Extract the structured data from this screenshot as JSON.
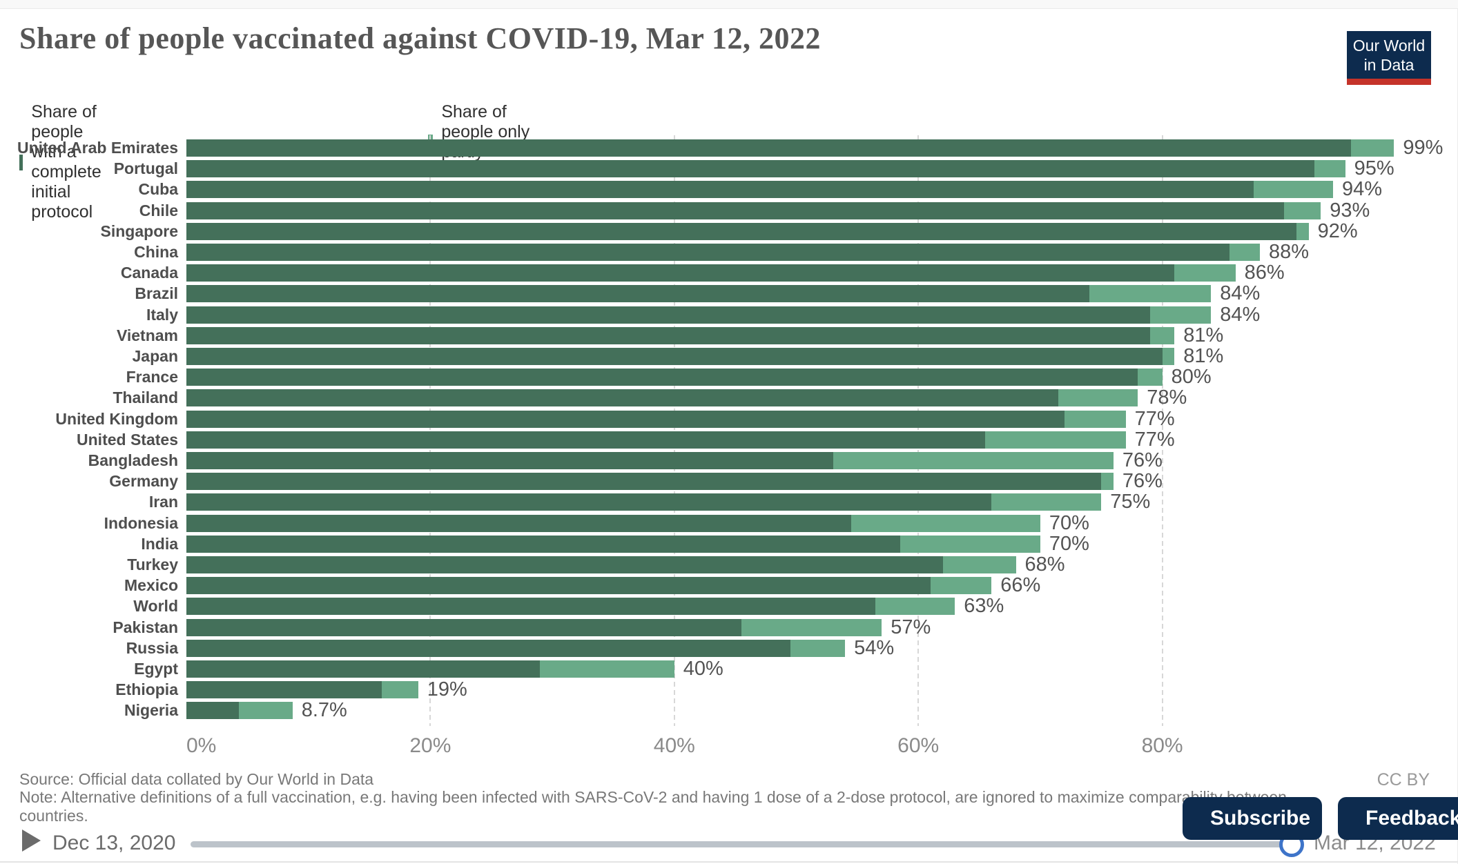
{
  "header": {
    "title": "Share of people vaccinated against COVID-19, Mar 12, 2022",
    "logo_line1": "Our World",
    "logo_line2": "in Data"
  },
  "legend": {
    "items": [
      {
        "label": "Share of people with a complete initial protocol",
        "color": "#44705A"
      },
      {
        "label": "Share of people only partly vaccinated",
        "color": "#69AA88"
      }
    ]
  },
  "chart_data": {
    "type": "bar",
    "stacked": true,
    "orientation": "horizontal",
    "xlim": [
      0,
      100
    ],
    "x_ticks": [
      0,
      20,
      40,
      60,
      80
    ],
    "x_tick_labels": [
      "0%",
      "20%",
      "40%",
      "60%",
      "80%"
    ],
    "grid": "dashed-vertical",
    "legend_position": "top",
    "categories": [
      "United Arab Emirates",
      "Portugal",
      "Cuba",
      "Chile",
      "Singapore",
      "China",
      "Canada",
      "Brazil",
      "Italy",
      "Vietnam",
      "Japan",
      "France",
      "Thailand",
      "United Kingdom",
      "United States",
      "Bangladesh",
      "Germany",
      "Iran",
      "Indonesia",
      "India",
      "Turkey",
      "Mexico",
      "World",
      "Pakistan",
      "Russia",
      "Egypt",
      "Ethiopia",
      "Nigeria"
    ],
    "series": [
      {
        "name": "Share of people with a complete initial protocol",
        "color": "#44705A",
        "values": [
          95.5,
          92.5,
          87.5,
          90,
          91,
          85.5,
          81,
          74,
          79,
          79,
          80,
          78,
          71.5,
          72,
          65.5,
          53,
          75,
          66,
          54.5,
          58.5,
          62,
          61,
          56.5,
          45.5,
          49.5,
          29,
          16,
          4.3
        ]
      },
      {
        "name": "Share of people only partly vaccinated",
        "color": "#69AA88",
        "values": [
          3.5,
          2.5,
          6.5,
          3,
          1,
          2.5,
          5,
          10,
          5,
          2,
          1,
          2,
          6.5,
          5,
          11.5,
          23,
          1,
          9,
          15.5,
          11.5,
          6,
          5,
          6.5,
          11.5,
          4.5,
          11,
          3,
          4.4
        ]
      }
    ],
    "total_labels": [
      "99%",
      "95%",
      "94%",
      "93%",
      "92%",
      "88%",
      "86%",
      "84%",
      "84%",
      "81%",
      "81%",
      "80%",
      "78%",
      "77%",
      "77%",
      "76%",
      "76%",
      "75%",
      "70%",
      "70%",
      "68%",
      "66%",
      "63%",
      "57%",
      "54%",
      "40%",
      "19%",
      "8.7%"
    ]
  },
  "footer": {
    "source": "Source: Official data collated by Our World in Data",
    "note": "Note: Alternative definitions of a full vaccination, e.g. having been infected with SARS-CoV-2 and having 1 dose of a 2-dose protocol, are ignored to maximize comparability between countries.",
    "license": "CC BY"
  },
  "timeline": {
    "start_date": "Dec 13, 2020",
    "end_date": "Mar 12, 2022"
  },
  "actions": {
    "subscribe": "Subscribe",
    "feedback": "Feedback"
  },
  "icons": {
    "play": "play-triangle",
    "subscribe": "open-envelope",
    "feedback": "speech-bubble"
  },
  "colors": {
    "complete": "#44705A",
    "partial": "#69AA88",
    "navy": "#0d2b4e",
    "brand_red": "#c5332a",
    "handle_blue": "#3e74c9"
  }
}
